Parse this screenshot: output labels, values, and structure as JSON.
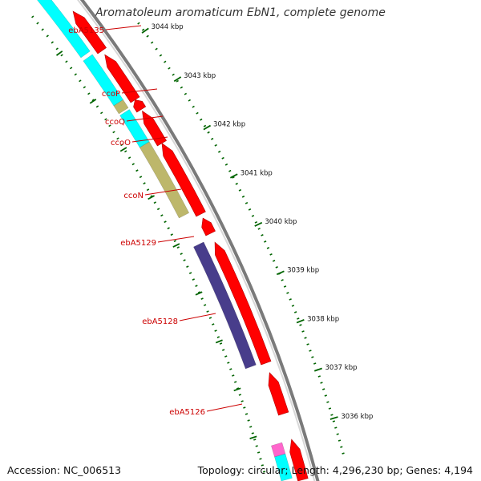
{
  "title": "Aromatoleum aromaticum EbN1, complete genome",
  "footer": {
    "accession": "Accession: NC_006513",
    "summary": "Topology: circular; Length: 4,296,230 bp; Genes: 4,194"
  },
  "colors": {
    "background": "#ffffff",
    "backbone": "#7a7a7a",
    "cds_forward": "#ff0000",
    "cog_cyan": "#00ffff",
    "cog_khaki": "#bdb76b",
    "cog_purple": "#483d8b",
    "cog_pink": "#ff66cc",
    "label_text": "#cc0000",
    "tick": "#006400"
  },
  "gene_labels": [
    "ebA5135",
    "ccoP",
    "ccoQ",
    "ccoO",
    "ccoN",
    "ebA5129",
    "ebA5128",
    "ebA5126"
  ],
  "scale_labels": [
    "3044 kbp",
    "3043 kbp",
    "3042 kbp",
    "3041 kbp",
    "3040 kbp",
    "3039 kbp",
    "3038 kbp",
    "3037 kbp",
    "3036 kbp"
  ]
}
